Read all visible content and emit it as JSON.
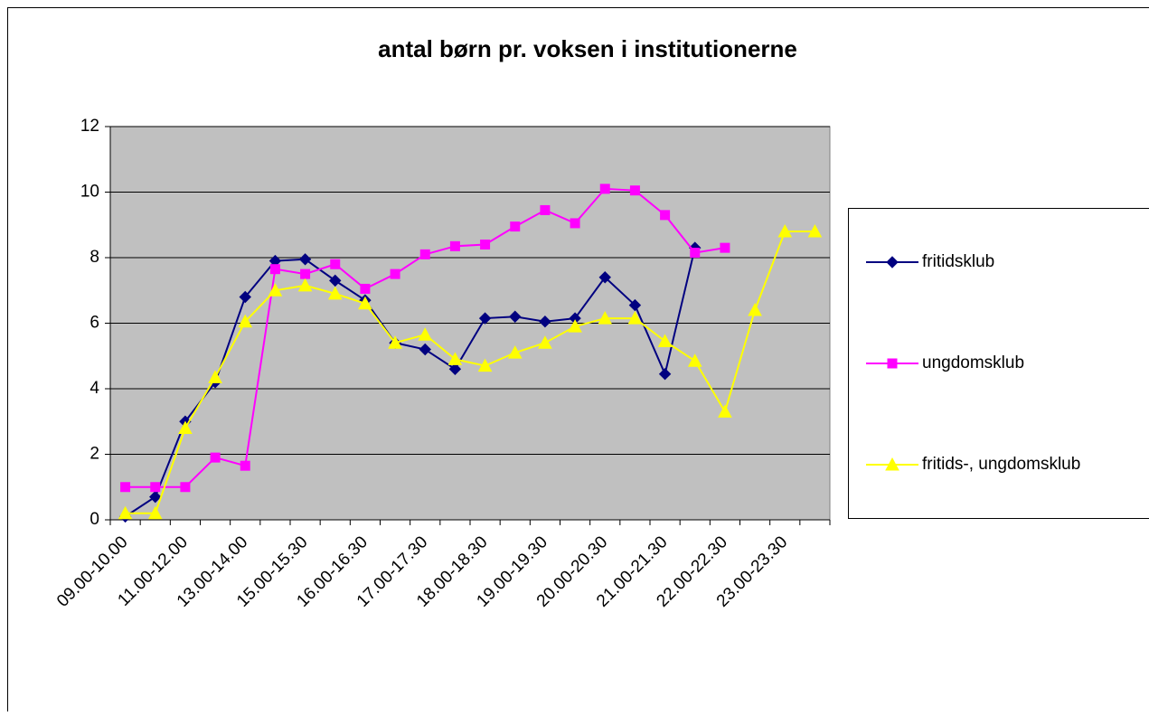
{
  "chart_data": {
    "type": "line",
    "title": "antal børn pr. voksen i institutionerne",
    "categories": [
      "09.00-10.00",
      null,
      "11.00-12.00",
      null,
      "13.00-14.00",
      null,
      "15.00-15.30",
      null,
      "16.00-16.30",
      null,
      "17.00-17.30",
      null,
      "18.00-18.30",
      null,
      "19.00-19.30",
      null,
      "20.00-20.30",
      null,
      "21.00-21.30",
      null,
      "22.00-22.30",
      null,
      "23.00-23.30",
      null
    ],
    "series": [
      {
        "name": "fritidsklub",
        "color": "#000080",
        "marker": "diamond",
        "values": [
          0.1,
          0.7,
          3.0,
          4.2,
          6.8,
          7.9,
          7.95,
          7.3,
          6.7,
          5.4,
          5.2,
          4.6,
          6.15,
          6.2,
          6.05,
          6.15,
          7.4,
          6.55,
          4.45,
          8.3,
          null,
          null,
          null,
          null
        ]
      },
      {
        "name": "ungdomsklub",
        "color": "#ff00ff",
        "marker": "square",
        "values": [
          1.0,
          1.0,
          1.0,
          1.9,
          1.65,
          7.65,
          7.5,
          7.8,
          7.05,
          7.5,
          8.1,
          8.35,
          8.4,
          8.95,
          9.45,
          9.05,
          10.1,
          10.05,
          9.3,
          8.15,
          8.3,
          null,
          null,
          null
        ]
      },
      {
        "name": "fritids-, ungdomsklub",
        "color": "#ffff00",
        "marker": "triangle",
        "values": [
          0.2,
          0.2,
          2.8,
          4.35,
          6.05,
          7.0,
          7.15,
          6.9,
          6.6,
          5.4,
          5.65,
          4.9,
          4.7,
          5.1,
          5.4,
          5.9,
          6.15,
          6.15,
          5.45,
          4.85,
          3.3,
          6.4,
          8.8,
          8.8
        ]
      }
    ],
    "ylim": [
      0,
      12
    ],
    "yticks": [
      0,
      2,
      4,
      6,
      8,
      10,
      12
    ],
    "grid": true,
    "legend": "right",
    "plot_background": "#c0c0c0"
  }
}
